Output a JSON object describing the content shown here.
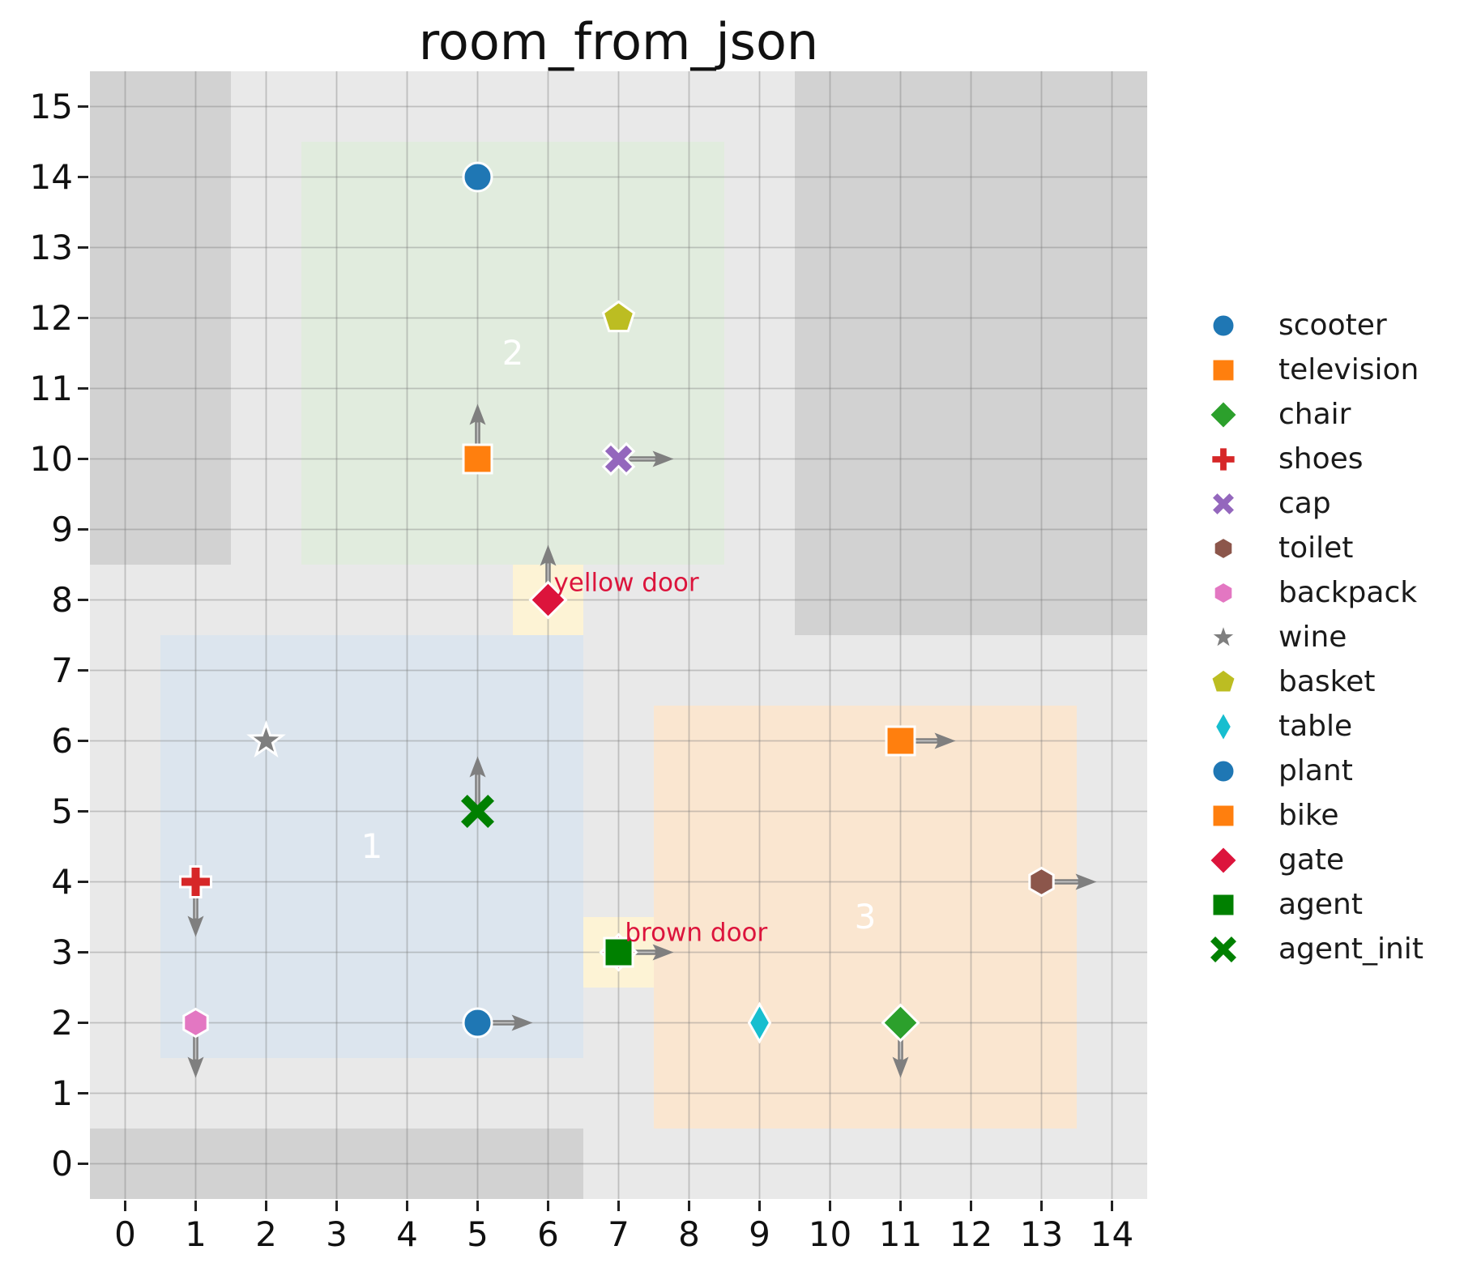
{
  "title": "room_from_json",
  "chart_data": {
    "type": "scatter",
    "title": "room_from_json",
    "xlabel": "",
    "ylabel": "",
    "xlim": [
      -0.5,
      14.5
    ],
    "ylim": [
      -0.5,
      15.5
    ],
    "xticks": [
      0,
      1,
      2,
      3,
      4,
      5,
      6,
      7,
      8,
      9,
      10,
      11,
      12,
      13,
      14
    ],
    "yticks": [
      0,
      1,
      2,
      3,
      4,
      5,
      6,
      7,
      8,
      9,
      10,
      11,
      12,
      13,
      14,
      15
    ],
    "grid": true,
    "legend_position": "right-outside",
    "colors": {
      "plot_background": "#e9e9e9",
      "obstacle": "#d2d2d2",
      "grid_line": "rgba(120,120,120,0.38)",
      "arrow": "#7f7f7f",
      "room_label": "#ffffff",
      "door_label": "#dc143c",
      "door_cell": "#fdf3d5",
      "tick_text": "#111111"
    },
    "rooms": [
      {
        "id": "1",
        "x0": 0.5,
        "y0": 1.5,
        "x1": 6.5,
        "y1": 7.5,
        "color": "#dce5ee",
        "label_x": 3.5,
        "label_y": 4.5
      },
      {
        "id": "2",
        "x0": 2.5,
        "y0": 8.5,
        "x1": 8.5,
        "y1": 14.5,
        "color": "#e1ecde",
        "label_x": 5.5,
        "label_y": 11.5
      },
      {
        "id": "3",
        "x0": 7.5,
        "y0": 0.5,
        "x1": 13.5,
        "y1": 6.5,
        "color": "#fae6d0",
        "label_x": 10.5,
        "label_y": 3.5
      }
    ],
    "obstacles": [
      {
        "x0": -0.5,
        "y0": 8.5,
        "x1": 1.5,
        "y1": 15.5
      },
      {
        "x0": 9.5,
        "y0": 7.5,
        "x1": 14.5,
        "y1": 15.5
      },
      {
        "x0": -0.5,
        "y0": -0.5,
        "x1": 6.5,
        "y1": 0.5
      }
    ],
    "doors": [
      {
        "name": "yellow door",
        "x0": 5.5,
        "y0": 7.5,
        "x1": 6.5,
        "y1": 8.5,
        "marker": "diamond",
        "marker_color": "#dc143c",
        "x": 6,
        "y": 8,
        "arrow": "up",
        "label": "yellow door",
        "label_x": 6.08,
        "label_y": 8.24
      },
      {
        "name": "brown door",
        "x0": 6.5,
        "y0": 2.5,
        "x1": 7.5,
        "y1": 3.5,
        "marker": "diamond",
        "marker_color": "#dc143c",
        "x": 7,
        "y": 3,
        "arrow": null,
        "label": "brown door",
        "label_x": 7.09,
        "label_y": 3.27
      }
    ],
    "objects": [
      {
        "name": "scooter",
        "marker": "circle",
        "color": "#1f77b4",
        "x": 5,
        "y": 14,
        "arrow": null
      },
      {
        "name": "television",
        "marker": "square",
        "color": "#ff7f0e",
        "x": 5,
        "y": 10,
        "arrow": "up"
      },
      {
        "name": "basket",
        "marker": "pentagon",
        "color": "#bcbd22",
        "x": 7,
        "y": 12,
        "arrow": null
      },
      {
        "name": "cap",
        "marker": "x",
        "color": "#9467bd",
        "x": 7,
        "y": 10,
        "arrow": "right"
      },
      {
        "name": "wine",
        "marker": "star",
        "color": "#7f7f7f",
        "x": 2,
        "y": 6,
        "arrow": null
      },
      {
        "name": "shoes",
        "marker": "plus",
        "color": "#d62728",
        "x": 1,
        "y": 4,
        "arrow": "down"
      },
      {
        "name": "backpack",
        "marker": "hexagon",
        "color": "#e377c2",
        "x": 1,
        "y": 2,
        "arrow": "down"
      },
      {
        "name": "plant",
        "marker": "circle",
        "color": "#1f77b4",
        "x": 5,
        "y": 2,
        "arrow": "right"
      },
      {
        "name": "table",
        "marker": "thin-diamond",
        "color": "#17becf",
        "x": 9,
        "y": 2,
        "arrow": null
      },
      {
        "name": "chair",
        "marker": "diamond",
        "color": "#2ca02c",
        "x": 11,
        "y": 2,
        "arrow": "down"
      },
      {
        "name": "bike",
        "marker": "square",
        "color": "#ff7f0e",
        "x": 11,
        "y": 6,
        "arrow": "right"
      },
      {
        "name": "toilet",
        "marker": "hexagon",
        "color": "#8c564b",
        "x": 13,
        "y": 4,
        "arrow": "right"
      },
      {
        "name": "agent",
        "marker": "square",
        "color": "#008000",
        "x": 7,
        "y": 3,
        "arrow": "right"
      },
      {
        "name": "agent_init",
        "marker": "x-thin",
        "color": "#008000",
        "x": 5,
        "y": 5,
        "arrow": "up",
        "outline": false
      }
    ],
    "legend": [
      {
        "label": "scooter",
        "marker": "circle",
        "color": "#1f77b4"
      },
      {
        "label": "television",
        "marker": "square",
        "color": "#ff7f0e"
      },
      {
        "label": "chair",
        "marker": "diamond",
        "color": "#2ca02c"
      },
      {
        "label": "shoes",
        "marker": "plus",
        "color": "#d62728"
      },
      {
        "label": "cap",
        "marker": "x",
        "color": "#9467bd"
      },
      {
        "label": "toilet",
        "marker": "hexagon",
        "color": "#8c564b"
      },
      {
        "label": "backpack",
        "marker": "hexagon",
        "color": "#e377c2"
      },
      {
        "label": "wine",
        "marker": "star",
        "color": "#7f7f7f"
      },
      {
        "label": "basket",
        "marker": "pentagon",
        "color": "#bcbd22"
      },
      {
        "label": "table",
        "marker": "thin-diamond",
        "color": "#17becf"
      },
      {
        "label": "plant",
        "marker": "circle",
        "color": "#1f77b4"
      },
      {
        "label": "bike",
        "marker": "square",
        "color": "#ff7f0e"
      },
      {
        "label": "gate",
        "marker": "diamond",
        "color": "#dc143c"
      },
      {
        "label": "agent",
        "marker": "square",
        "color": "#008000"
      },
      {
        "label": "agent_init",
        "marker": "x-thin",
        "color": "#008000"
      }
    ]
  }
}
